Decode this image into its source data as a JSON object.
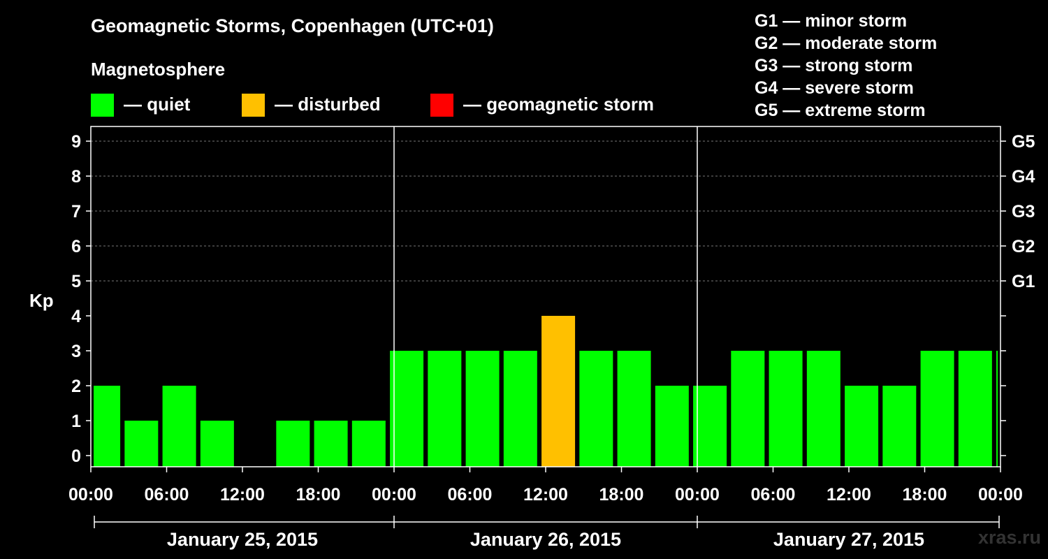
{
  "chart_data": {
    "type": "bar",
    "title": "Geomagnetic Storms, Copenhagen (UTC+01)",
    "subtitle": "Magnetosphere",
    "ylabel": "Kp",
    "ylim": [
      0,
      9
    ],
    "yticks": [
      "0",
      "1",
      "2",
      "3",
      "4",
      "5",
      "6",
      "7",
      "8",
      "9"
    ],
    "right_axis_labels": [
      {
        "kp": 5,
        "label": "G1"
      },
      {
        "kp": 6,
        "label": "G2"
      },
      {
        "kp": 7,
        "label": "G3"
      },
      {
        "kp": 8,
        "label": "G4"
      },
      {
        "kp": 9,
        "label": "G5"
      }
    ],
    "xticks": [
      "00:00",
      "06:00",
      "12:00",
      "18:00",
      "00:00",
      "06:00",
      "12:00",
      "18:00",
      "00:00",
      "06:00",
      "12:00",
      "18:00",
      "00:00"
    ],
    "days": [
      "January 25, 2015",
      "January 26, 2015",
      "January 27, 2015"
    ],
    "interval_hours": 3,
    "first_bar_hours": 1,
    "values": [
      2,
      1,
      2,
      1,
      0,
      1,
      1,
      1,
      3,
      3,
      3,
      3,
      4,
      3,
      3,
      2,
      2,
      3,
      3,
      3,
      2,
      2,
      3,
      3,
      3
    ],
    "legend": [
      {
        "label": "— quiet",
        "color": "#00ff00"
      },
      {
        "label": "— disturbed",
        "color": "#ffc000"
      },
      {
        "label": "— geomagnetic storm",
        "color": "#ff0000"
      }
    ],
    "storm_scale": [
      "G1 — minor storm",
      "G2 — moderate storm",
      "G3 — strong storm",
      "G4 — severe storm",
      "G5 — extreme storm"
    ],
    "watermark": "xras.ru"
  }
}
